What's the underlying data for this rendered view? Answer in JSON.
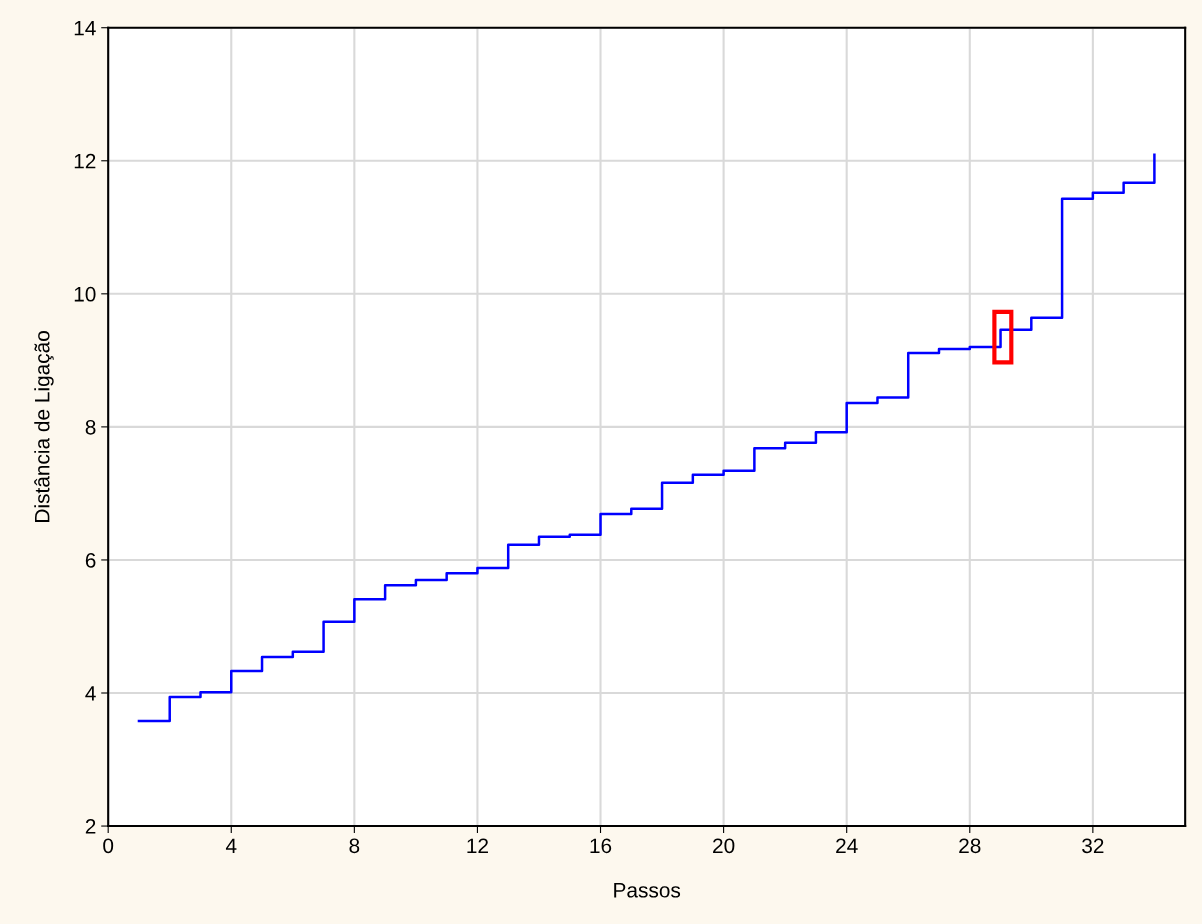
{
  "chart_data": {
    "type": "step",
    "xlabel": "Passos",
    "ylabel": "Distância de Ligação",
    "x": [
      1,
      2,
      3,
      4,
      5,
      6,
      7,
      8,
      9,
      10,
      11,
      12,
      13,
      14,
      15,
      16,
      17,
      18,
      19,
      20,
      21,
      22,
      23,
      24,
      25,
      26,
      27,
      28,
      29,
      30,
      31,
      32,
      33,
      34
    ],
    "series": [
      {
        "color": "#0000ff",
        "values": [
          3.58,
          3.94,
          4.01,
          4.33,
          4.54,
          4.62,
          5.07,
          5.41,
          5.62,
          5.7,
          5.8,
          5.88,
          6.23,
          6.35,
          6.38,
          6.69,
          6.77,
          7.16,
          7.28,
          7.34,
          7.68,
          7.76,
          7.92,
          8.36,
          8.44,
          9.11,
          9.17,
          9.2,
          9.46,
          9.64,
          11.43,
          11.52,
          11.67,
          12.09
        ]
      }
    ],
    "xlim": [
      0,
      35
    ],
    "xticks": [
      0,
      4,
      8,
      12,
      16,
      20,
      24,
      28,
      32
    ],
    "ylim": [
      2,
      14
    ],
    "yticks": [
      2,
      4,
      6,
      8,
      10,
      12,
      14
    ],
    "grid": true,
    "line_style": "solid",
    "marker": "none"
  }
}
